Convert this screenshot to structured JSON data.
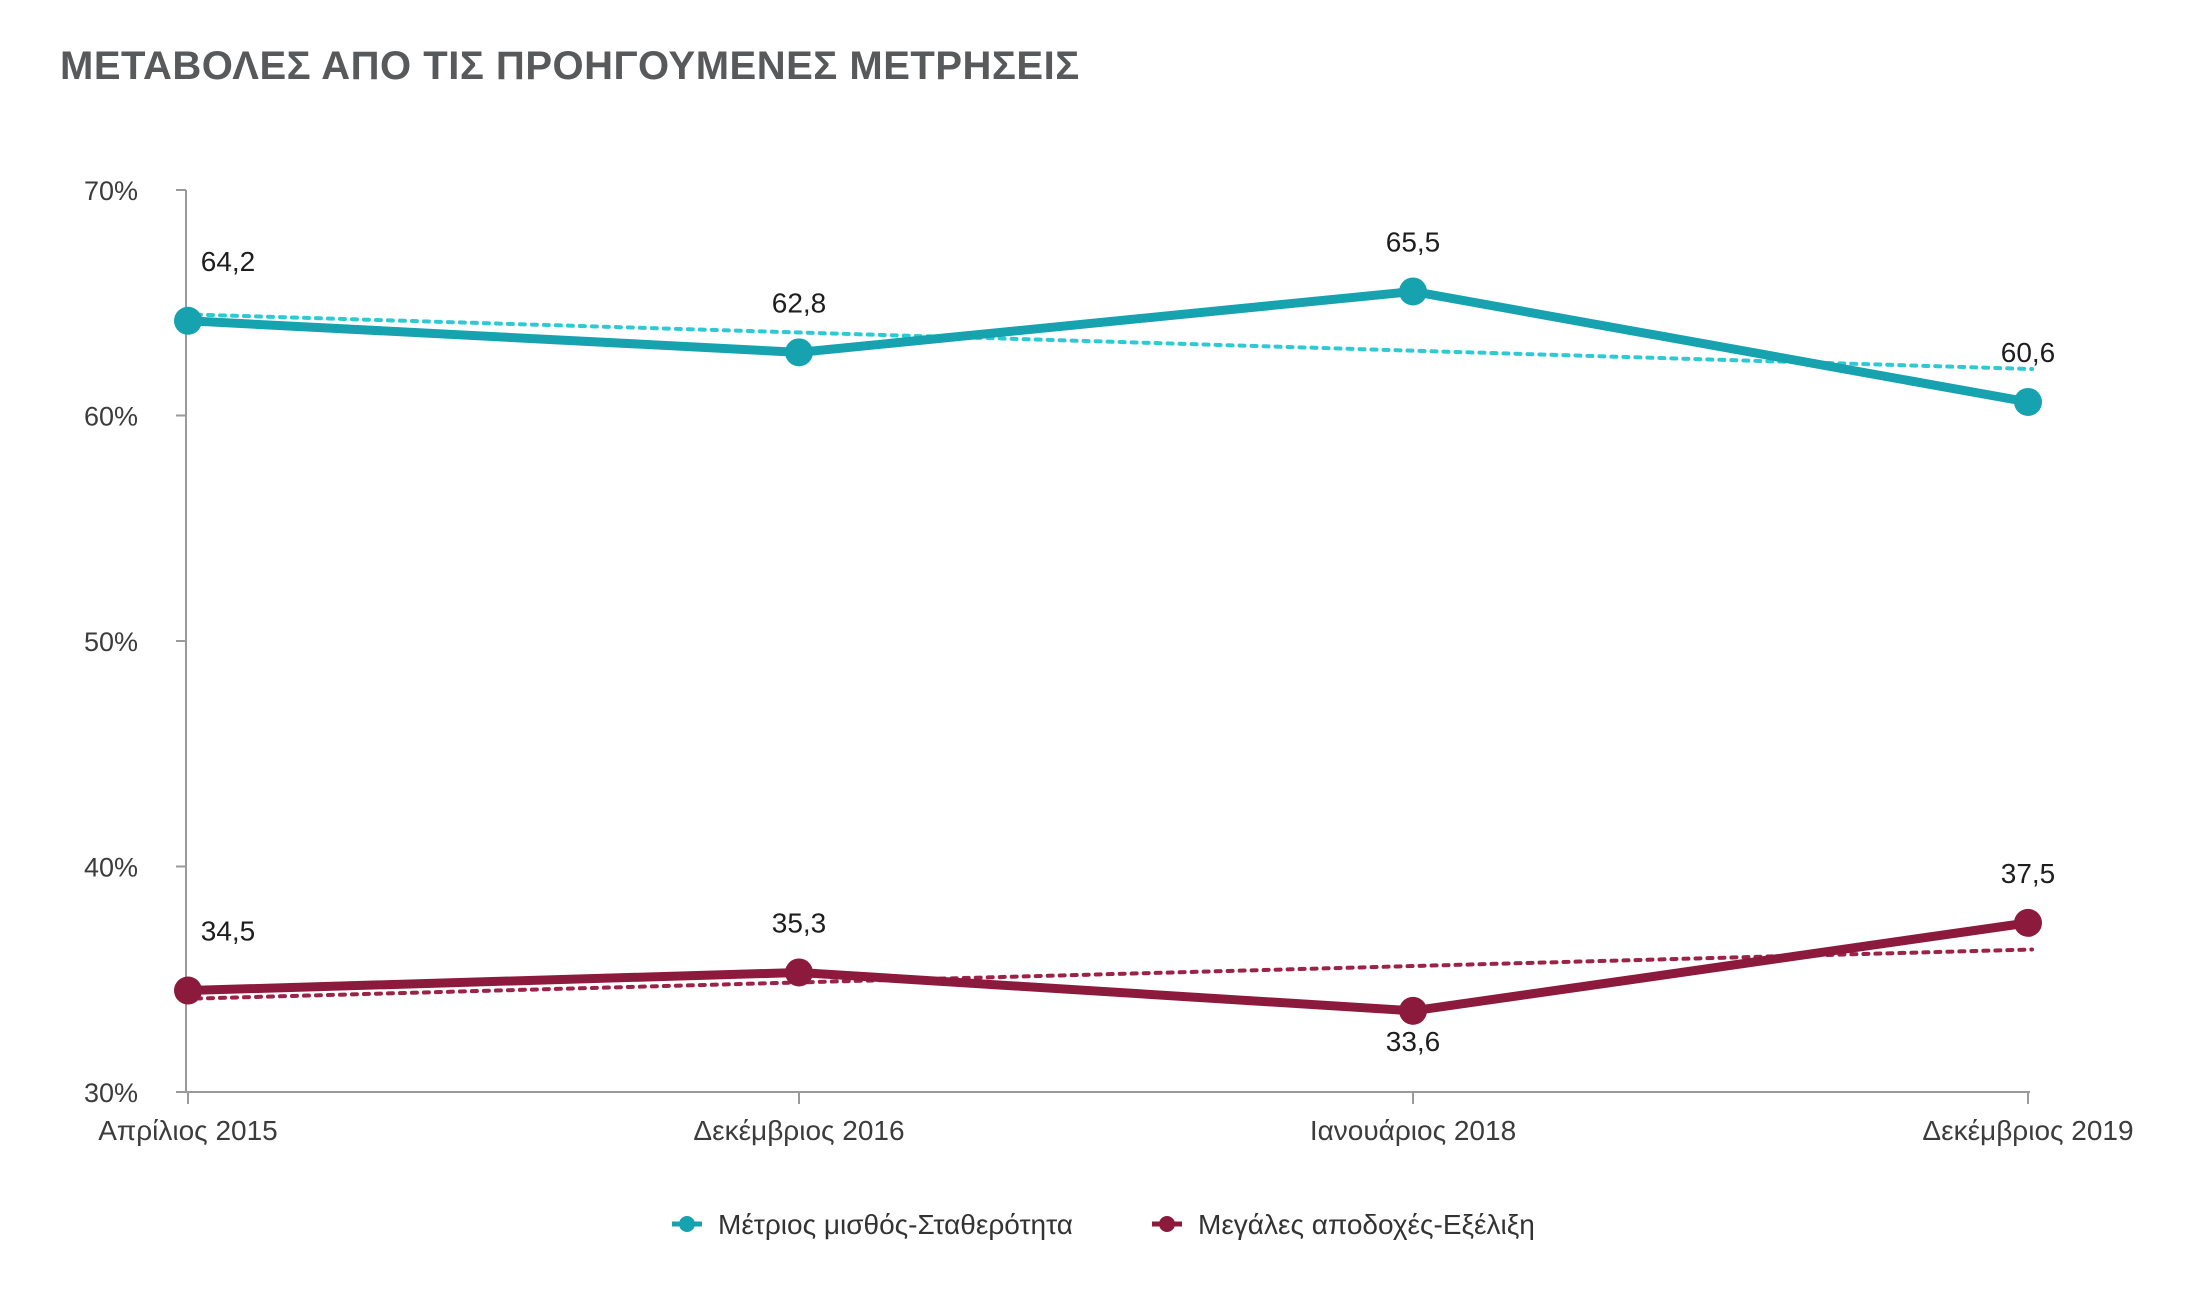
{
  "title": "ΜΕΤΑΒΟΛΕΣ ΑΠΟ ΤΙΣ ΠΡΟΗΓΟΥΜΕΝΕΣ ΜΕΤΡΗΣΕΙΣ",
  "chart_data": {
    "type": "line",
    "title": "ΜΕΤΑΒΟΛΕΣ ΑΠΟ ΤΙΣ ΠΡΟΗΓΟΥΜΕΝΕΣ ΜΕΤΡΗΣΕΙΣ",
    "categories": [
      "Απρίλιος 2015",
      "Δεκέμβριος 2016",
      "Ιανουάριος 2018",
      "Δεκέμβριος 2019"
    ],
    "ylim": [
      30,
      70
    ],
    "yticks": [
      30,
      40,
      50,
      60,
      70
    ],
    "ytick_labels": [
      "30%",
      "40%",
      "50%",
      "60%",
      "70%"
    ],
    "grid": false,
    "legend_position": "bottom",
    "series": [
      {
        "name": "Μέτριος μισθός-Σταθερότητα",
        "values": [
          64.2,
          62.8,
          65.5,
          60.6
        ],
        "labels": [
          "64,2",
          "62,8",
          "65,5",
          "60,6"
        ],
        "color": "#17a2b0",
        "trend_color": "#2fc9d4",
        "trendline": true
      },
      {
        "name": "Μεγάλες αποδοχές-Εξέλιξη",
        "values": [
          34.5,
          35.3,
          33.6,
          37.5
        ],
        "labels": [
          "34,5",
          "35,3",
          "33,6",
          "37,5"
        ],
        "color": "#8c1a3c",
        "trend_color": "#9b2348",
        "trendline": true
      }
    ]
  }
}
